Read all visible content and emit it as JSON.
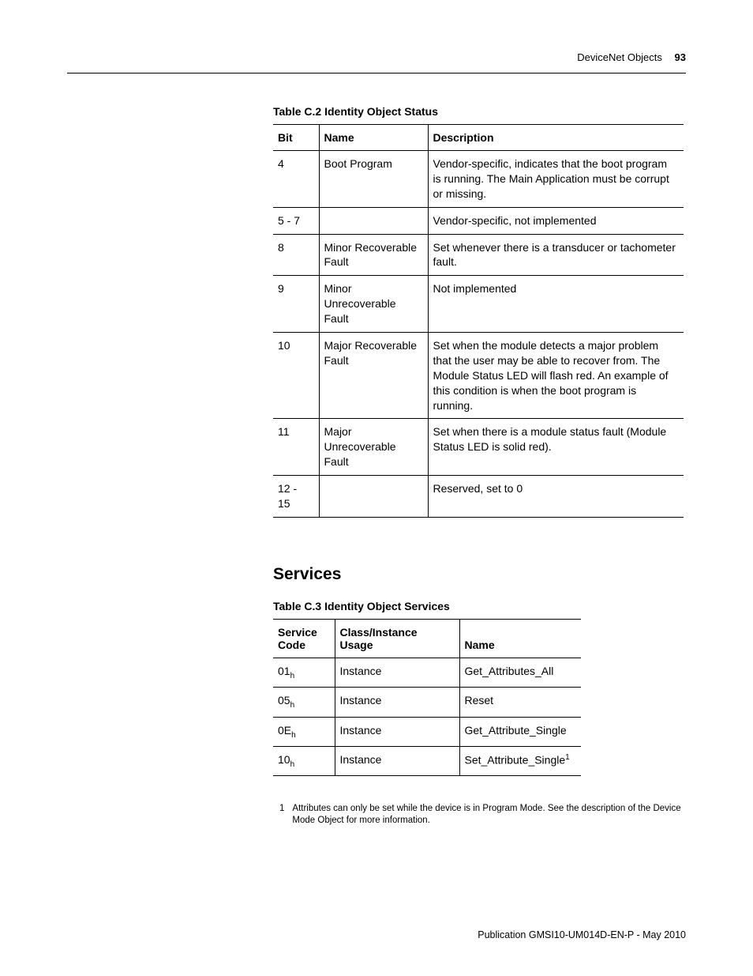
{
  "header": {
    "section": "DeviceNet Objects",
    "page_number": "93"
  },
  "status_table": {
    "caption": "Table C.2 Identity Object Status",
    "columns": [
      "Bit",
      "Name",
      "Description"
    ],
    "rows": [
      {
        "bit": "4",
        "name": "Boot Program",
        "description": "Vendor-specific, indicates that the boot program is running. The Main Application must be corrupt or missing."
      },
      {
        "bit": "5 - 7",
        "name": "",
        "description": "Vendor-specific, not implemented"
      },
      {
        "bit": "8",
        "name": "Minor Recoverable Fault",
        "description": "Set whenever there is a transducer or tachometer fault."
      },
      {
        "bit": "9",
        "name": "Minor Unrecoverable Fault",
        "description": "Not implemented"
      },
      {
        "bit": "10",
        "name": "Major Recoverable Fault",
        "description": "Set when the module detects a major problem that the user may be able to recover from. The Module Status LED will flash red. An example of this condition is when the boot program is running."
      },
      {
        "bit": "11",
        "name": "Major Unrecoverable Fault",
        "description": "Set when there is a module status fault (Module Status LED is solid red)."
      },
      {
        "bit": "12 - 15",
        "name": "",
        "description": "Reserved, set to 0"
      }
    ]
  },
  "services_section": {
    "heading": "Services"
  },
  "services_table": {
    "caption": "Table C.3 Identity Object Services",
    "columns": [
      "Service Code",
      "Class/Instance Usage",
      "Name"
    ],
    "rows": [
      {
        "code": "01",
        "code_sub": "h",
        "usage": "Instance",
        "name": "Get_Attributes_All",
        "sup": ""
      },
      {
        "code": "05",
        "code_sub": "h",
        "usage": "Instance",
        "name": "Reset",
        "sup": ""
      },
      {
        "code": "0E",
        "code_sub": "h",
        "usage": "Instance",
        "name": "Get_Attribute_Single",
        "sup": ""
      },
      {
        "code": "10",
        "code_sub": "h",
        "usage": "Instance",
        "name": "Set_Attribute_Single",
        "sup": "1"
      }
    ]
  },
  "footnote": {
    "num": "1",
    "text": "Attributes can only be set while the device is in Program Mode. See the description of the Device Mode Object for more information."
  },
  "footer": {
    "publication": "Publication GMSI10-UM014D-EN-P - May 2010"
  }
}
